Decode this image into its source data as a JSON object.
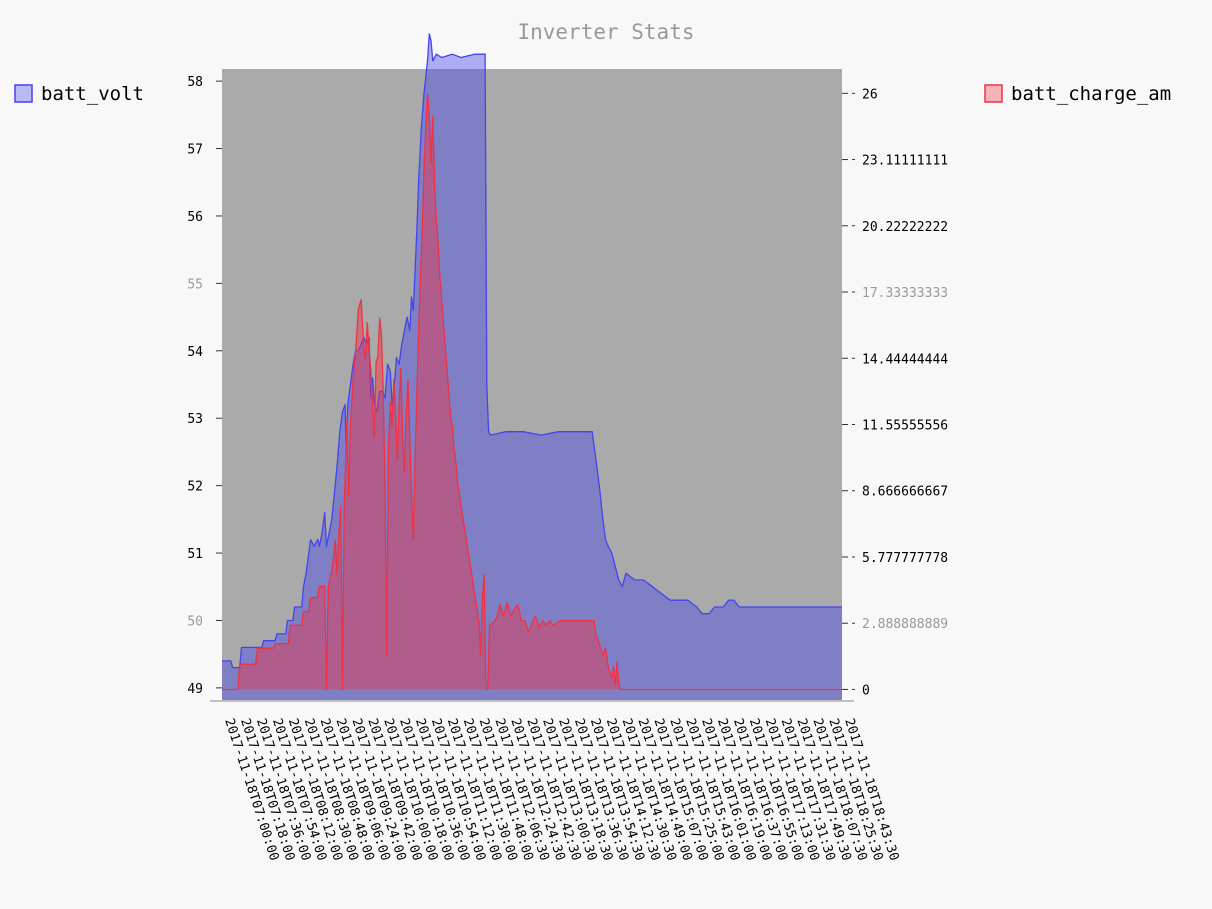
{
  "chart_data": {
    "type": "area",
    "title": "Inverter Stats",
    "background_color": "#aaaaaa",
    "page_color": "#f8f8f8",
    "legend": [
      {
        "label": "batt_volt",
        "color": "#4444ee",
        "axis": "left",
        "placement": "top-left"
      },
      {
        "label": "batt_charge_am",
        "color": "#ee3344",
        "axis": "right",
        "placement": "top-right"
      }
    ],
    "y_left": {
      "range": [
        48.82,
        58.18
      ],
      "ticks": [
        "49",
        "50",
        "51",
        "52",
        "53",
        "54",
        "55",
        "56",
        "57",
        "58"
      ],
      "tick_values": [
        49,
        50,
        51,
        52,
        53,
        54,
        55,
        56,
        57,
        58
      ],
      "muted": [
        "50",
        "55"
      ]
    },
    "y_right": {
      "range": [
        -0.46,
        27.06
      ],
      "ticks": [
        "0",
        "2.888888889",
        "5.777777778",
        "8.666666667",
        "11.55555556",
        "14.44444444",
        "17.33333333",
        "20.22222222",
        "23.11111111",
        "26"
      ],
      "tick_values": [
        0,
        2.888888889,
        5.777777778,
        8.666666667,
        11.55555556,
        14.44444444,
        17.33333333,
        20.22222222,
        23.11111111,
        26
      ],
      "muted": [
        "2.888888889",
        "17.33333333"
      ]
    },
    "x_range": [
      0,
      700
    ],
    "x_tick_labels": [
      "2017-11-18T07:00:00",
      "2017-11-18T07:18:00",
      "2017-11-18T07:36:00",
      "2017-11-18T07:54:00",
      "2017-11-18T08:12:00",
      "2017-11-18T08:30:00",
      "2017-11-18T08:48:00",
      "2017-11-18T09:06:00",
      "2017-11-18T09:24:00",
      "2017-11-18T09:42:00",
      "2017-11-18T10:00:00",
      "2017-11-18T10:18:00",
      "2017-11-18T10:36:00",
      "2017-11-18T10:54:00",
      "2017-11-18T11:12:00",
      "2017-11-18T11:30:00",
      "2017-11-18T11:48:00",
      "2017-11-18T12:06:30",
      "2017-11-18T12:24:30",
      "2017-11-18T12:42:30",
      "2017-11-18T13:00:30",
      "2017-11-18T13:18:30",
      "2017-11-18T13:36:30",
      "2017-11-18T13:54:30",
      "2017-11-18T14:12:30",
      "2017-11-18T14:30:30",
      "2017-11-18T14:49:00",
      "2017-11-18T15:07:00",
      "2017-11-18T15:25:00",
      "2017-11-18T15:43:00",
      "2017-11-18T16:01:00",
      "2017-11-18T16:19:00",
      "2017-11-18T16:37:00",
      "2017-11-18T16:55:00",
      "2017-11-18T17:13:00",
      "2017-11-18T17:31:30",
      "2017-11-18T17:49:30",
      "2017-11-18T18:07:30",
      "2017-11-18T18:25:30",
      "2017-11-18T18:43:30"
    ],
    "series": [
      {
        "name": "batt_volt",
        "axis": "left",
        "points": [
          [
            0,
            49.4
          ],
          [
            10,
            49.4
          ],
          [
            12,
            49.3
          ],
          [
            20,
            49.3
          ],
          [
            22,
            49.6
          ],
          [
            45,
            49.6
          ],
          [
            47,
            49.7
          ],
          [
            60,
            49.7
          ],
          [
            62,
            49.8
          ],
          [
            72,
            49.8
          ],
          [
            74,
            50.0
          ],
          [
            80,
            50.0
          ],
          [
            82,
            50.2
          ],
          [
            90,
            50.2
          ],
          [
            92,
            50.5
          ],
          [
            95,
            50.7
          ],
          [
            98,
            51.0
          ],
          [
            100,
            51.2
          ],
          [
            104,
            51.1
          ],
          [
            108,
            51.2
          ],
          [
            110,
            51.1
          ],
          [
            113,
            51.3
          ],
          [
            116,
            51.6
          ],
          [
            118,
            51.1
          ],
          [
            121,
            51.3
          ],
          [
            124,
            51.5
          ],
          [
            127,
            51.9
          ],
          [
            130,
            52.3
          ],
          [
            133,
            52.8
          ],
          [
            136,
            53.1
          ],
          [
            139,
            53.2
          ],
          [
            140,
            52.6
          ],
          [
            142,
            53.2
          ],
          [
            145,
            53.5
          ],
          [
            148,
            53.8
          ],
          [
            151,
            54.0
          ],
          [
            154,
            54.0
          ],
          [
            157,
            54.1
          ],
          [
            160,
            54.2
          ],
          [
            163,
            54.1
          ],
          [
            166,
            54.2
          ],
          [
            168,
            53.3
          ],
          [
            170,
            53.6
          ],
          [
            172,
            53.2
          ],
          [
            175,
            53.1
          ],
          [
            178,
            53.4
          ],
          [
            181,
            53.4
          ],
          [
            184,
            53.3
          ],
          [
            187,
            53.8
          ],
          [
            190,
            53.7
          ],
          [
            192,
            53.2
          ],
          [
            194,
            53.4
          ],
          [
            197,
            53.9
          ],
          [
            200,
            53.8
          ],
          [
            203,
            54.1
          ],
          [
            206,
            54.3
          ],
          [
            209,
            54.5
          ],
          [
            212,
            54.3
          ],
          [
            214,
            54.8
          ],
          [
            216,
            54.6
          ],
          [
            218,
            55.2
          ],
          [
            220,
            55.8
          ],
          [
            222,
            56.5
          ],
          [
            225,
            57.3
          ],
          [
            228,
            57.8
          ],
          [
            232,
            58.3
          ],
          [
            234,
            58.7
          ],
          [
            236,
            58.6
          ],
          [
            238,
            58.3
          ],
          [
            242,
            58.4
          ],
          [
            248,
            58.35
          ],
          [
            260,
            58.4
          ],
          [
            270,
            58.35
          ],
          [
            285,
            58.4
          ],
          [
            295,
            58.4
          ],
          [
            297,
            58.4
          ],
          [
            299,
            53.5
          ],
          [
            301,
            52.8
          ],
          [
            303,
            52.75
          ],
          [
            320,
            52.8
          ],
          [
            340,
            52.8
          ],
          [
            360,
            52.75
          ],
          [
            380,
            52.8
          ],
          [
            400,
            52.8
          ],
          [
            410,
            52.8
          ],
          [
            418,
            52.8
          ],
          [
            422,
            52.4
          ],
          [
            426,
            52.0
          ],
          [
            430,
            51.5
          ],
          [
            433,
            51.2
          ],
          [
            436,
            51.1
          ],
          [
            440,
            51.0
          ],
          [
            444,
            50.8
          ],
          [
            448,
            50.6
          ],
          [
            452,
            50.5
          ],
          [
            456,
            50.7
          ],
          [
            466,
            50.6
          ],
          [
            476,
            50.6
          ],
          [
            486,
            50.5
          ],
          [
            496,
            50.4
          ],
          [
            506,
            50.3
          ],
          [
            516,
            50.3
          ],
          [
            526,
            50.3
          ],
          [
            536,
            50.2
          ],
          [
            542,
            50.1
          ],
          [
            550,
            50.1
          ],
          [
            556,
            50.2
          ],
          [
            566,
            50.2
          ],
          [
            572,
            50.3
          ],
          [
            578,
            50.3
          ],
          [
            584,
            50.2
          ],
          [
            700,
            50.2
          ]
        ]
      },
      {
        "name": "batt_charge_am",
        "axis": "right",
        "points": [
          [
            0,
            0
          ],
          [
            18,
            0
          ],
          [
            20,
            1.1
          ],
          [
            38,
            1.1
          ],
          [
            40,
            1.8
          ],
          [
            58,
            1.8
          ],
          [
            60,
            2.0
          ],
          [
            75,
            2.0
          ],
          [
            77,
            2.8
          ],
          [
            90,
            2.8
          ],
          [
            92,
            3.4
          ],
          [
            98,
            3.4
          ],
          [
            100,
            4.0
          ],
          [
            108,
            4.0
          ],
          [
            110,
            4.5
          ],
          [
            116,
            4.5
          ],
          [
            118,
            0
          ],
          [
            120,
            4.5
          ],
          [
            124,
            5.2
          ],
          [
            128,
            6.5
          ],
          [
            130,
            5.0
          ],
          [
            132,
            6.8
          ],
          [
            134,
            8.0
          ],
          [
            136,
            0
          ],
          [
            138,
            8.0
          ],
          [
            141,
            11.8
          ],
          [
            143,
            8.5
          ],
          [
            145,
            11.5
          ],
          [
            148,
            13.5
          ],
          [
            151,
            14.8
          ],
          [
            154,
            16.6
          ],
          [
            157,
            17.0
          ],
          [
            160,
            15.0
          ],
          [
            162,
            14.4
          ],
          [
            164,
            16.0
          ],
          [
            166,
            14.8
          ],
          [
            168,
            14.0
          ],
          [
            170,
            12.2
          ],
          [
            172,
            11.0
          ],
          [
            174,
            14.3
          ],
          [
            176,
            14.5
          ],
          [
            178,
            16.2
          ],
          [
            180,
            15.5
          ],
          [
            182,
            13.0
          ],
          [
            184,
            9.0
          ],
          [
            186,
            1.5
          ],
          [
            188,
            10.5
          ],
          [
            190,
            12.5
          ],
          [
            192,
            11.5
          ],
          [
            194,
            13.5
          ],
          [
            196,
            12.0
          ],
          [
            198,
            10.0
          ],
          [
            200,
            12.5
          ],
          [
            202,
            14.0
          ],
          [
            204,
            11.0
          ],
          [
            206,
            9.5
          ],
          [
            208,
            12.0
          ],
          [
            210,
            13.5
          ],
          [
            212,
            11.0
          ],
          [
            214,
            8.5
          ],
          [
            216,
            6.5
          ],
          [
            218,
            10.0
          ],
          [
            220,
            13.0
          ],
          [
            222,
            15.5
          ],
          [
            224,
            18.0
          ],
          [
            226,
            20.0
          ],
          [
            228,
            22.5
          ],
          [
            230,
            24.5
          ],
          [
            232,
            26.0
          ],
          [
            234,
            25.0
          ],
          [
            236,
            23.0
          ],
          [
            238,
            25.0
          ],
          [
            240,
            22.0
          ],
          [
            242,
            20.5
          ],
          [
            244,
            19.5
          ],
          [
            246,
            18.0
          ],
          [
            248,
            17.0
          ],
          [
            250,
            16.0
          ],
          [
            252,
            15.0
          ],
          [
            254,
            14.0
          ],
          [
            256,
            13.0
          ],
          [
            258,
            12.0
          ],
          [
            260,
            11.5
          ],
          [
            262,
            10.5
          ],
          [
            264,
            10.0
          ],
          [
            266,
            9.0
          ],
          [
            268,
            8.5
          ],
          [
            270,
            8.0
          ],
          [
            272,
            7.5
          ],
          [
            274,
            7.0
          ],
          [
            276,
            6.5
          ],
          [
            278,
            6.0
          ],
          [
            280,
            5.5
          ],
          [
            282,
            5.0
          ],
          [
            284,
            4.5
          ],
          [
            286,
            4.0
          ],
          [
            288,
            3.5
          ],
          [
            290,
            3.0
          ],
          [
            292,
            1.5
          ],
          [
            294,
            4.0
          ],
          [
            296,
            5.0
          ],
          [
            298,
            0
          ],
          [
            300,
            0
          ],
          [
            302,
            2.8
          ],
          [
            306,
            2.9
          ],
          [
            310,
            3.1
          ],
          [
            314,
            3.7
          ],
          [
            318,
            3.2
          ],
          [
            322,
            3.8
          ],
          [
            326,
            3.2
          ],
          [
            330,
            3.5
          ],
          [
            334,
            3.7
          ],
          [
            338,
            3.0
          ],
          [
            342,
            3.0
          ],
          [
            346,
            2.5
          ],
          [
            350,
            2.9
          ],
          [
            354,
            3.2
          ],
          [
            358,
            2.7
          ],
          [
            362,
            3.0
          ],
          [
            366,
            2.8
          ],
          [
            370,
            3.0
          ],
          [
            374,
            2.8
          ],
          [
            378,
            2.9
          ],
          [
            382,
            3.0
          ],
          [
            386,
            3.0
          ],
          [
            390,
            3.0
          ],
          [
            394,
            3.0
          ],
          [
            398,
            3.0
          ],
          [
            402,
            3.0
          ],
          [
            406,
            3.0
          ],
          [
            410,
            3.0
          ],
          [
            420,
            3.0
          ],
          [
            422,
            2.4
          ],
          [
            426,
            2.0
          ],
          [
            430,
            1.5
          ],
          [
            433,
            1.8
          ],
          [
            436,
            1.0
          ],
          [
            440,
            0.5
          ],
          [
            442,
            1.0
          ],
          [
            444,
            0.2
          ],
          [
            446,
            1.2
          ],
          [
            448,
            0.2
          ],
          [
            450,
            0
          ],
          [
            700,
            0
          ]
        ]
      }
    ]
  }
}
